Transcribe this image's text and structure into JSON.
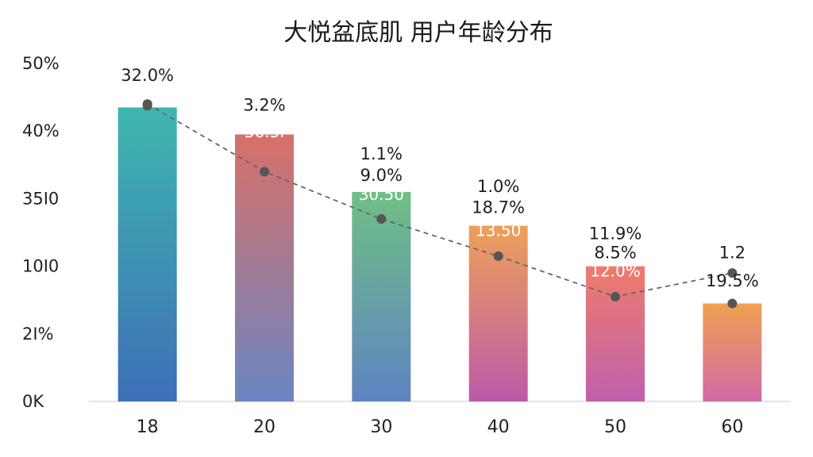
{
  "chart_data": {
    "type": "bar",
    "title": "大悦盆底肌 用户年龄分布",
    "xlabel": "",
    "ylabel": "",
    "ylim": [
      0,
      50
    ],
    "y_tick_labels": [
      "0K",
      "2I%",
      "10I0",
      "35I0",
      "40%",
      "50%"
    ],
    "categories": [
      "18",
      "20",
      "30",
      "40",
      "50",
      "60"
    ],
    "values": [
      43.5,
      39.5,
      31.0,
      26.0,
      20.0,
      14.5
    ],
    "line_values": [
      44.0,
      34.0,
      27.0,
      21.5,
      15.5,
      19.0
    ],
    "bar_colors": [
      [
        "#3fb6b0",
        "#3d6fb6"
      ],
      [
        "#d87068",
        "#6a86c2"
      ],
      [
        "#6fbf86",
        "#5f84c2"
      ],
      [
        "#eea05a",
        "#bb5aa8"
      ],
      [
        "#ee7c6c",
        "#bf60ad"
      ],
      [
        "#f0a050",
        "#d36aa6"
      ]
    ],
    "annotations": [
      {
        "bar": 0,
        "lines": [
          {
            "text": "32.0%",
            "tone": "dark",
            "at": 47.4
          }
        ]
      },
      {
        "bar": 1,
        "lines": [
          {
            "text": "3.2%",
            "tone": "dark",
            "at": 43.0
          },
          {
            "text": "36.5I",
            "tone": "light",
            "at": 39.1
          }
        ]
      },
      {
        "bar": 2,
        "lines": [
          {
            "text": "1.1%",
            "tone": "dark",
            "at": 35.8
          },
          {
            "text": "9.0%",
            "tone": "dark",
            "at": 32.6
          },
          {
            "text": "30.50",
            "tone": "light",
            "at": 29.8
          }
        ]
      },
      {
        "bar": 3,
        "lines": [
          {
            "text": "1.0%",
            "tone": "dark",
            "at": 31.0
          },
          {
            "text": "18.7%",
            "tone": "dark",
            "at": 27.9
          },
          {
            "text": "13.50",
            "tone": "light",
            "at": 24.5
          }
        ]
      },
      {
        "bar": 4,
        "lines": [
          {
            "text": "11.9%",
            "tone": "dark",
            "at": 24.0
          },
          {
            "text": "8.5%",
            "tone": "dark",
            "at": 21.2
          },
          {
            "text": "12.0%",
            "tone": "light",
            "at": 18.5
          }
        ]
      },
      {
        "bar": 5,
        "lines": [
          {
            "text": "1.2",
            "tone": "dark",
            "at": 21.2
          },
          {
            "text": "19.5%",
            "tone": "dark",
            "at": 17.0
          }
        ]
      }
    ],
    "grid": false,
    "legend": "none"
  }
}
